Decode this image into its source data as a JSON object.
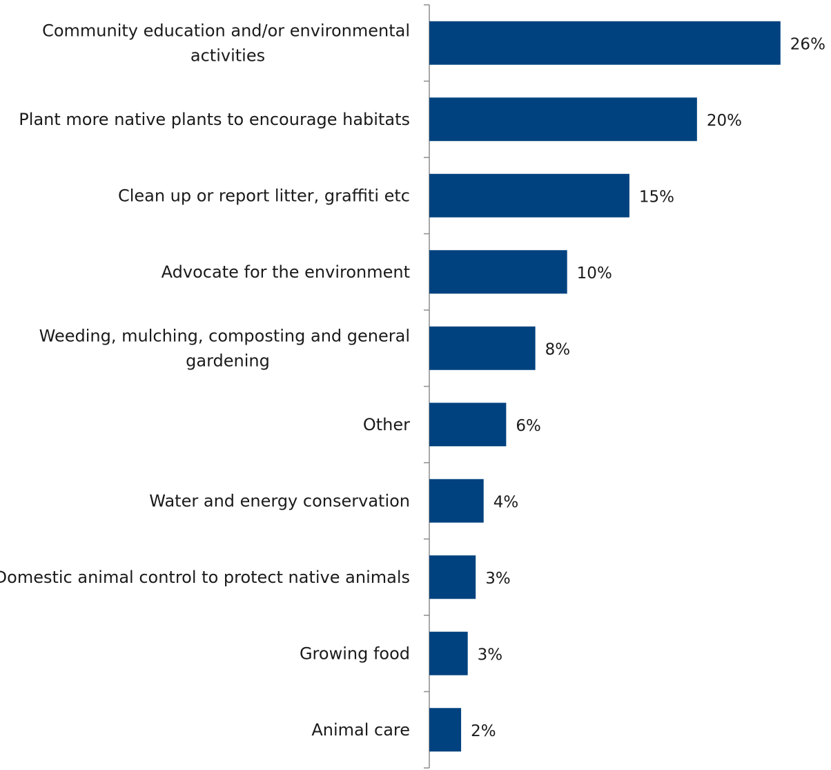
{
  "chart_data": {
    "type": "bar",
    "orientation": "horizontal",
    "categories": [
      [
        "Community education and/or environmental",
        "activities"
      ],
      [
        "Plant more native plants to encourage habitats"
      ],
      [
        "Clean up or report litter, graffiti etc"
      ],
      [
        "Advocate for the environment"
      ],
      [
        "Weeding, mulching, composting and general",
        "gardening"
      ],
      [
        "Other"
      ],
      [
        "Water and energy conservation"
      ],
      [
        "Domestic animal control to protect native animals"
      ],
      [
        "Growing food"
      ],
      [
        "Animal care"
      ]
    ],
    "values": [
      26,
      20,
      15,
      10,
      8,
      6,
      4,
      3,
      3,
      2
    ],
    "value_labels": [
      "26%",
      "20%",
      "15%",
      "10%",
      "8%",
      "6%",
      "4%",
      "3%",
      "3%",
      "2%"
    ],
    "bar_extent": [
      26.5,
      20.2,
      15.1,
      10.4,
      8.0,
      5.8,
      4.1,
      3.5,
      2.9,
      2.4
    ],
    "xlim": [
      0,
      30
    ],
    "title": "",
    "xlabel": "",
    "ylabel": "",
    "grid": false,
    "legend": "none",
    "colors": {
      "bar": "#00427F",
      "axis": "#8c8c8c",
      "text": "#1a1a1a"
    }
  }
}
